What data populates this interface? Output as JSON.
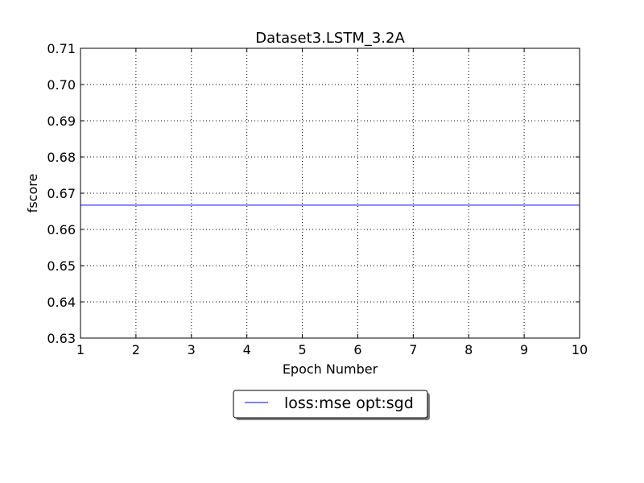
{
  "chart_data": {
    "type": "line",
    "title": "Dataset3.LSTM_3.2A",
    "xlabel": "Epoch Number",
    "ylabel": "fscore",
    "xlim": [
      1,
      10
    ],
    "ylim": [
      0.63,
      0.71
    ],
    "x_ticks": [
      1,
      2,
      3,
      4,
      5,
      6,
      7,
      8,
      9,
      10
    ],
    "y_ticks": [
      "0.63",
      "0.64",
      "0.65",
      "0.66",
      "0.67",
      "0.68",
      "0.69",
      "0.70",
      "0.71"
    ],
    "grid": true,
    "legend_position": "bottom-center",
    "series": [
      {
        "name": "loss:mse opt:sgd",
        "color": "#0000ff",
        "x": [
          1,
          2,
          3,
          4,
          5,
          6,
          7,
          8,
          9,
          10
        ],
        "y": [
          0.6667,
          0.6667,
          0.6667,
          0.6667,
          0.6667,
          0.6667,
          0.6667,
          0.6667,
          0.6667,
          0.6667
        ]
      }
    ]
  }
}
